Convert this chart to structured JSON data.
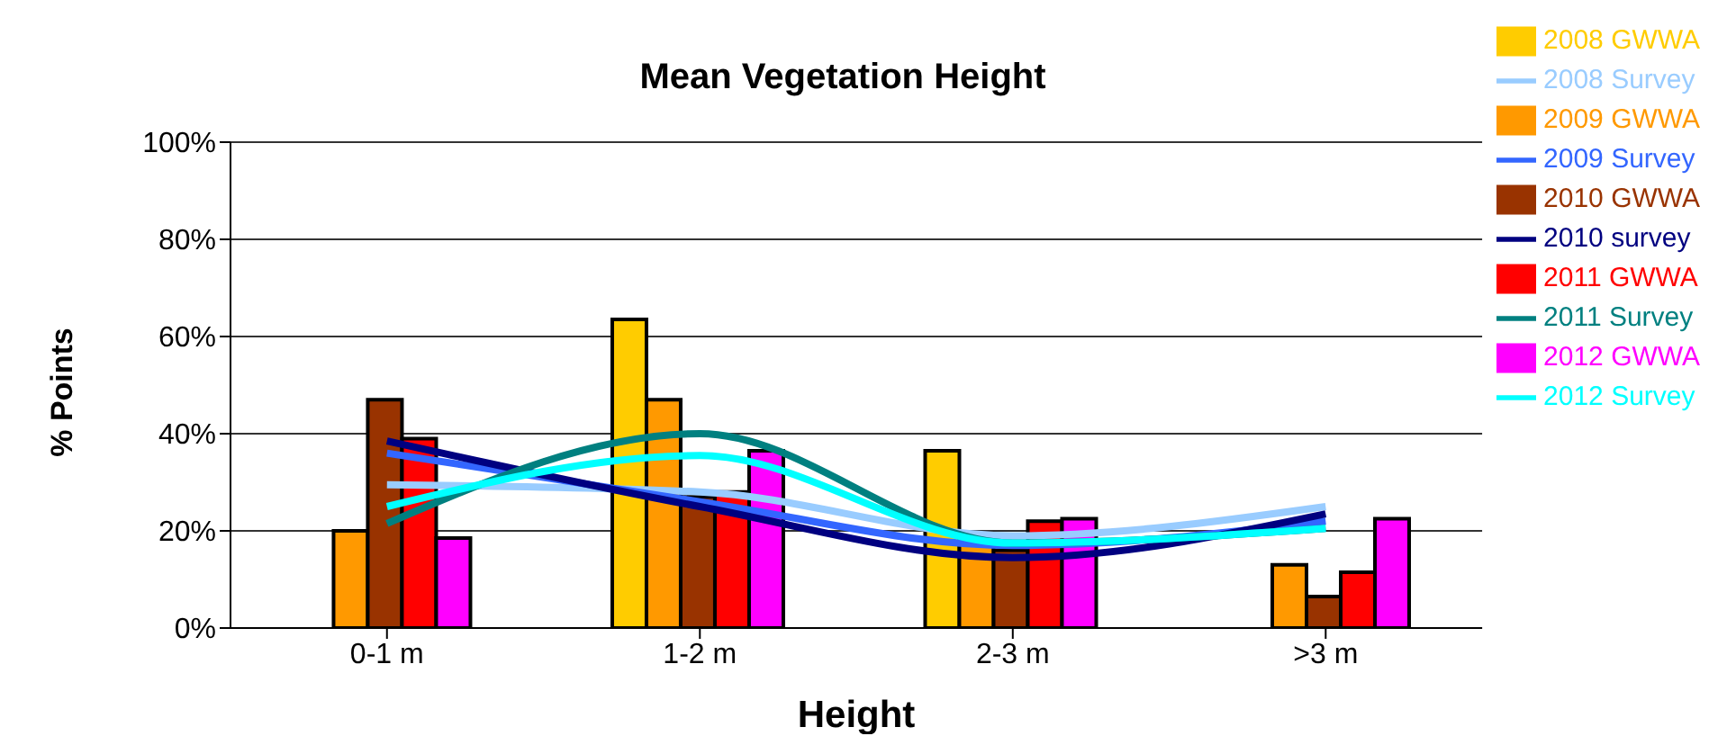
{
  "chart_data": {
    "type": "bar",
    "title": "Mean Vegetation Height",
    "xlabel": "Height",
    "ylabel": "% Points",
    "categories": [
      "0-1 m",
      "1-2 m",
      "2-3 m",
      ">3 m"
    ],
    "series": [
      {
        "name": "2008 GWWA",
        "color": "#ffcc00",
        "values": [
          null,
          63.5,
          36.5,
          null
        ]
      },
      {
        "name": "2009 GWWA",
        "color": "#ff9900",
        "values": [
          20,
          47,
          18,
          13
        ]
      },
      {
        "name": "2010 GWWA",
        "color": "#993300",
        "values": [
          47,
          27,
          16,
          6.5
        ]
      },
      {
        "name": "2011 GWWA",
        "color": "#ff0000",
        "values": [
          39,
          28,
          22,
          11.5
        ]
      },
      {
        "name": "2012 GWWA",
        "color": "#ff00ff",
        "values": [
          18.5,
          36.5,
          22.5,
          22.5
        ]
      },
      {
        "name": "2008 Survey",
        "type": "line",
        "color": "#99ccff",
        "values": [
          29.5,
          28,
          19,
          25
        ]
      },
      {
        "name": "2009 Survey",
        "type": "line",
        "color": "#3366ff",
        "values": [
          36,
          26,
          17,
          22
        ]
      },
      {
        "name": "2010 survey",
        "type": "line",
        "color": "#000080",
        "values": [
          38.5,
          25,
          14.5,
          23.5
        ]
      },
      {
        "name": "2011 Survey",
        "type": "line",
        "color": "#008080",
        "values": [
          21.5,
          40,
          17.5,
          20.5
        ]
      },
      {
        "name": "2012 Survey",
        "type": "line",
        "color": "#00ffff",
        "values": [
          25,
          35.5,
          17.5,
          20.5
        ]
      }
    ],
    "ylim": [
      0,
      100
    ],
    "yticks": [
      {
        "value": 0,
        "label": "0%"
      },
      {
        "value": 20,
        "label": "20%"
      },
      {
        "value": 40,
        "label": "40%"
      },
      {
        "value": 60,
        "label": "60%"
      },
      {
        "value": 80,
        "label": "80%"
      },
      {
        "value": 100,
        "label": "100%"
      }
    ],
    "grid": "y",
    "legend": "top right",
    "marker": "none"
  }
}
